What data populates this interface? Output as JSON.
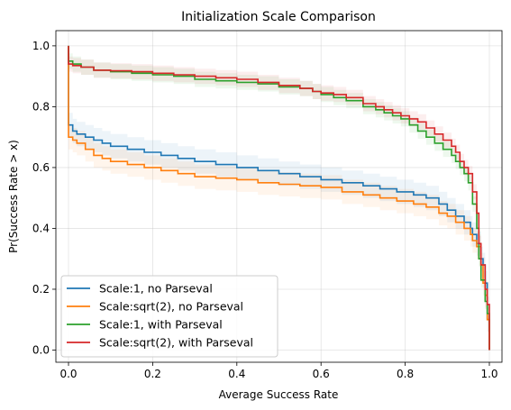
{
  "chart_data": {
    "type": "line",
    "step": true,
    "title": "Initialization Scale Comparison",
    "xlabel": "Average Success Rate",
    "ylabel": "Pr(Success Rate > x)",
    "xlim": [
      -0.03,
      1.03
    ],
    "ylim": [
      -0.04,
      1.05
    ],
    "xticks": [
      0.0,
      0.2,
      0.4,
      0.6,
      0.8,
      1.0
    ],
    "xtick_labels": [
      "0.0",
      "0.2",
      "0.4",
      "0.6",
      "0.8",
      "1.0"
    ],
    "yticks": [
      0.0,
      0.2,
      0.4,
      0.6,
      0.8,
      1.0
    ],
    "ytick_labels": [
      "0.0",
      "0.2",
      "0.4",
      "0.6",
      "0.8",
      "1.0"
    ],
    "grid": true,
    "legend_position": "lower-left",
    "confidence_band": true,
    "series": [
      {
        "name": "Scale:1, no Parseval",
        "color": "#1f77b4",
        "band_width": 0.04,
        "points": [
          [
            0.0,
            1.0
          ],
          [
            0.0,
            0.74
          ],
          [
            0.01,
            0.72
          ],
          [
            0.02,
            0.71
          ],
          [
            0.04,
            0.7
          ],
          [
            0.06,
            0.69
          ],
          [
            0.08,
            0.68
          ],
          [
            0.1,
            0.67
          ],
          [
            0.14,
            0.66
          ],
          [
            0.18,
            0.65
          ],
          [
            0.22,
            0.64
          ],
          [
            0.26,
            0.63
          ],
          [
            0.3,
            0.62
          ],
          [
            0.35,
            0.61
          ],
          [
            0.4,
            0.6
          ],
          [
            0.45,
            0.59
          ],
          [
            0.5,
            0.58
          ],
          [
            0.55,
            0.57
          ],
          [
            0.6,
            0.56
          ],
          [
            0.65,
            0.55
          ],
          [
            0.7,
            0.54
          ],
          [
            0.74,
            0.53
          ],
          [
            0.78,
            0.52
          ],
          [
            0.82,
            0.51
          ],
          [
            0.85,
            0.5
          ],
          [
            0.88,
            0.48
          ],
          [
            0.9,
            0.46
          ],
          [
            0.92,
            0.44
          ],
          [
            0.94,
            0.42
          ],
          [
            0.955,
            0.4
          ],
          [
            0.96,
            0.38
          ],
          [
            0.97,
            0.35
          ],
          [
            0.98,
            0.3
          ],
          [
            0.985,
            0.28
          ],
          [
            0.99,
            0.22
          ],
          [
            0.995,
            0.1
          ],
          [
            1.0,
            0.0
          ]
        ]
      },
      {
        "name": "Scale:sqrt(2), no Parseval",
        "color": "#ff7f0e",
        "band_width": 0.04,
        "points": [
          [
            0.0,
            1.0
          ],
          [
            0.0,
            0.7
          ],
          [
            0.01,
            0.69
          ],
          [
            0.02,
            0.68
          ],
          [
            0.04,
            0.66
          ],
          [
            0.06,
            0.64
          ],
          [
            0.08,
            0.63
          ],
          [
            0.1,
            0.62
          ],
          [
            0.14,
            0.61
          ],
          [
            0.18,
            0.6
          ],
          [
            0.22,
            0.59
          ],
          [
            0.26,
            0.58
          ],
          [
            0.3,
            0.57
          ],
          [
            0.35,
            0.565
          ],
          [
            0.4,
            0.56
          ],
          [
            0.45,
            0.55
          ],
          [
            0.5,
            0.545
          ],
          [
            0.55,
            0.54
          ],
          [
            0.6,
            0.535
          ],
          [
            0.65,
            0.52
          ],
          [
            0.7,
            0.51
          ],
          [
            0.74,
            0.5
          ],
          [
            0.78,
            0.49
          ],
          [
            0.82,
            0.48
          ],
          [
            0.85,
            0.47
          ],
          [
            0.88,
            0.45
          ],
          [
            0.9,
            0.44
          ],
          [
            0.92,
            0.42
          ],
          [
            0.94,
            0.4
          ],
          [
            0.955,
            0.38
          ],
          [
            0.96,
            0.36
          ],
          [
            0.97,
            0.34
          ],
          [
            0.98,
            0.28
          ],
          [
            0.985,
            0.22
          ],
          [
            0.99,
            0.18
          ],
          [
            0.995,
            0.1
          ],
          [
            1.0,
            0.0
          ]
        ]
      },
      {
        "name": "Scale:1, with Parseval",
        "color": "#2ca02c",
        "band_width": 0.025,
        "points": [
          [
            0.0,
            1.0
          ],
          [
            0.0,
            0.95
          ],
          [
            0.01,
            0.94
          ],
          [
            0.03,
            0.93
          ],
          [
            0.06,
            0.92
          ],
          [
            0.1,
            0.915
          ],
          [
            0.15,
            0.91
          ],
          [
            0.2,
            0.905
          ],
          [
            0.25,
            0.9
          ],
          [
            0.3,
            0.89
          ],
          [
            0.35,
            0.885
          ],
          [
            0.4,
            0.88
          ],
          [
            0.45,
            0.875
          ],
          [
            0.5,
            0.865
          ],
          [
            0.55,
            0.86
          ],
          [
            0.58,
            0.85
          ],
          [
            0.6,
            0.84
          ],
          [
            0.63,
            0.83
          ],
          [
            0.66,
            0.82
          ],
          [
            0.7,
            0.8
          ],
          [
            0.73,
            0.79
          ],
          [
            0.75,
            0.78
          ],
          [
            0.77,
            0.77
          ],
          [
            0.79,
            0.76
          ],
          [
            0.81,
            0.74
          ],
          [
            0.83,
            0.72
          ],
          [
            0.85,
            0.7
          ],
          [
            0.87,
            0.68
          ],
          [
            0.89,
            0.66
          ],
          [
            0.91,
            0.64
          ],
          [
            0.92,
            0.62
          ],
          [
            0.93,
            0.6
          ],
          [
            0.94,
            0.58
          ],
          [
            0.95,
            0.55
          ],
          [
            0.96,
            0.48
          ],
          [
            0.97,
            0.4
          ],
          [
            0.975,
            0.3
          ],
          [
            0.98,
            0.23
          ],
          [
            0.99,
            0.16
          ],
          [
            0.995,
            0.12
          ],
          [
            1.0,
            0.0
          ]
        ]
      },
      {
        "name": "Scale:sqrt(2), with Parseval",
        "color": "#d62728",
        "band_width": 0.025,
        "points": [
          [
            0.0,
            1.0
          ],
          [
            0.0,
            0.94
          ],
          [
            0.01,
            0.935
          ],
          [
            0.03,
            0.93
          ],
          [
            0.06,
            0.92
          ],
          [
            0.1,
            0.918
          ],
          [
            0.15,
            0.915
          ],
          [
            0.2,
            0.91
          ],
          [
            0.25,
            0.905
          ],
          [
            0.3,
            0.9
          ],
          [
            0.35,
            0.895
          ],
          [
            0.4,
            0.89
          ],
          [
            0.45,
            0.88
          ],
          [
            0.5,
            0.87
          ],
          [
            0.55,
            0.86
          ],
          [
            0.58,
            0.85
          ],
          [
            0.6,
            0.845
          ],
          [
            0.63,
            0.84
          ],
          [
            0.66,
            0.83
          ],
          [
            0.7,
            0.81
          ],
          [
            0.73,
            0.8
          ],
          [
            0.75,
            0.79
          ],
          [
            0.77,
            0.78
          ],
          [
            0.79,
            0.77
          ],
          [
            0.81,
            0.76
          ],
          [
            0.83,
            0.75
          ],
          [
            0.85,
            0.73
          ],
          [
            0.87,
            0.71
          ],
          [
            0.89,
            0.69
          ],
          [
            0.91,
            0.67
          ],
          [
            0.92,
            0.65
          ],
          [
            0.93,
            0.62
          ],
          [
            0.94,
            0.6
          ],
          [
            0.95,
            0.58
          ],
          [
            0.96,
            0.52
          ],
          [
            0.97,
            0.45
          ],
          [
            0.975,
            0.35
          ],
          [
            0.98,
            0.28
          ],
          [
            0.99,
            0.2
          ],
          [
            0.995,
            0.15
          ],
          [
            1.0,
            0.0
          ]
        ]
      }
    ]
  }
}
